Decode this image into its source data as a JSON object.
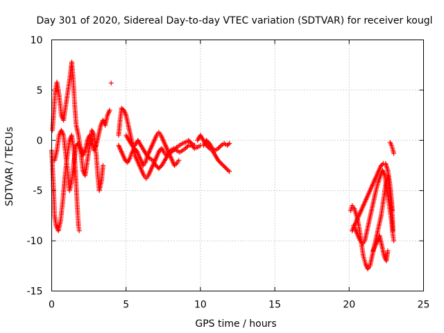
{
  "chart_data": {
    "type": "scatter",
    "title": "Day 301 of 2020, Sidereal Day-to-day VTEC variation (SDTVAR) for receiver kougl",
    "xlabel": "GPS time / hours",
    "ylabel": "SDTVAR / TECUs",
    "xlim": [
      0,
      25
    ],
    "ylim": [
      -15,
      10
    ],
    "xticks": [
      0,
      5,
      10,
      15,
      20,
      25
    ],
    "yticks": [
      -15,
      -10,
      -5,
      0,
      5,
      10
    ],
    "grid": true,
    "marker": "+",
    "color": "#ff0000",
    "series": [
      {
        "name": "SDTVAR",
        "segments": [
          [
            [
              0.0,
              -1.0
            ],
            [
              0.1,
              -4.0
            ],
            [
              0.2,
              -7.5
            ],
            [
              0.3,
              -8.5
            ],
            [
              0.45,
              -9.0
            ],
            [
              0.6,
              -8.0
            ],
            [
              0.75,
              -6.0
            ],
            [
              0.9,
              -3.5
            ],
            [
              1.05,
              -1.5
            ],
            [
              1.2,
              0.0
            ],
            [
              1.35,
              0.5
            ],
            [
              1.5,
              -1.0
            ],
            [
              1.6,
              -3.0
            ],
            [
              1.7,
              -6.0
            ],
            [
              1.8,
              -8.5
            ],
            [
              1.85,
              -9.0
            ]
          ],
          [
            [
              0.05,
              1.0
            ],
            [
              0.15,
              3.0
            ],
            [
              0.25,
              5.0
            ],
            [
              0.35,
              5.8
            ],
            [
              0.5,
              4.5
            ],
            [
              0.65,
              2.5
            ],
            [
              0.8,
              2.0
            ],
            [
              0.95,
              3.5
            ],
            [
              1.1,
              5.0
            ],
            [
              1.25,
              6.5
            ],
            [
              1.35,
              7.8
            ],
            [
              1.45,
              6.0
            ],
            [
              1.55,
              3.5
            ],
            [
              1.65,
              1.5
            ],
            [
              1.8,
              0.5
            ],
            [
              1.95,
              -1.0
            ],
            [
              2.1,
              -3.0
            ],
            [
              2.25,
              -3.5
            ],
            [
              2.4,
              -2.0
            ],
            [
              2.55,
              -0.5
            ],
            [
              2.7,
              1.0
            ],
            [
              2.85,
              0.5
            ],
            [
              3.0,
              -1.5
            ],
            [
              3.1,
              -3.5
            ],
            [
              3.2,
              -5.0
            ],
            [
              3.35,
              -4.0
            ],
            [
              3.45,
              -2.5
            ]
          ],
          [
            [
              0.2,
              -2.0
            ],
            [
              0.35,
              -1.0
            ],
            [
              0.5,
              0.5
            ],
            [
              0.65,
              1.0
            ],
            [
              0.8,
              0.5
            ],
            [
              0.95,
              -1.5
            ],
            [
              1.1,
              -3.5
            ],
            [
              1.2,
              -5.0
            ],
            [
              1.35,
              -4.0
            ],
            [
              1.5,
              -2.0
            ],
            [
              1.65,
              -0.5
            ],
            [
              1.8,
              -0.3
            ],
            [
              1.95,
              -0.8
            ],
            [
              2.1,
              -1.5
            ],
            [
              2.25,
              -1.0
            ],
            [
              2.4,
              0.0
            ],
            [
              2.55,
              0.5
            ],
            [
              2.7,
              0.0
            ],
            [
              2.85,
              -1.0
            ],
            [
              3.0,
              -0.5
            ],
            [
              3.15,
              0.5
            ],
            [
              3.3,
              1.5
            ],
            [
              3.45,
              2.0
            ],
            [
              3.6,
              1.5
            ],
            [
              3.75,
              2.5
            ],
            [
              3.9,
              3.0
            ]
          ],
          [
            [
              4.0,
              5.7
            ]
          ],
          [
            [
              4.5,
              0.5
            ],
            [
              4.6,
              2.0
            ],
            [
              4.7,
              3.2
            ],
            [
              4.85,
              3.0
            ],
            [
              5.0,
              2.5
            ],
            [
              5.15,
              1.5
            ],
            [
              5.3,
              0.5
            ],
            [
              5.45,
              -0.5
            ],
            [
              5.6,
              -1.5
            ],
            [
              5.75,
              -2.0
            ],
            [
              5.9,
              -2.5
            ],
            [
              6.05,
              -3.0
            ],
            [
              6.2,
              -3.5
            ],
            [
              6.35,
              -3.8
            ],
            [
              6.5,
              -3.5
            ],
            [
              6.65,
              -3.0
            ],
            [
              6.8,
              -2.5
            ],
            [
              6.95,
              -2.0
            ],
            [
              7.1,
              -1.5
            ],
            [
              7.25,
              -1.0
            ],
            [
              7.4,
              -0.8
            ],
            [
              7.55,
              -1.2
            ],
            [
              7.7,
              -1.5
            ],
            [
              7.85,
              -1.3
            ],
            [
              8.0,
              -1.0
            ],
            [
              8.2,
              -0.8
            ],
            [
              8.4,
              -1.0
            ],
            [
              8.6,
              -1.2
            ],
            [
              8.8,
              -1.0
            ],
            [
              9.0,
              -0.8
            ],
            [
              9.2,
              -0.5
            ],
            [
              9.4,
              -0.5
            ],
            [
              9.6,
              -0.8
            ],
            [
              9.8,
              -0.7
            ],
            [
              10.0,
              -0.5
            ]
          ],
          [
            [
              4.5,
              -0.5
            ],
            [
              4.65,
              -1.0
            ],
            [
              4.8,
              -1.5
            ],
            [
              4.95,
              -2.0
            ],
            [
              5.1,
              -2.2
            ],
            [
              5.25,
              -1.8
            ],
            [
              5.4,
              -1.2
            ],
            [
              5.55,
              -0.8
            ],
            [
              5.7,
              -1.0
            ],
            [
              5.85,
              -1.5
            ],
            [
              6.0,
              -2.0
            ],
            [
              6.15,
              -2.5
            ],
            [
              6.3,
              -2.2
            ],
            [
              6.45,
              -1.5
            ],
            [
              6.6,
              -1.0
            ],
            [
              6.75,
              -0.5
            ],
            [
              6.9,
              0.0
            ],
            [
              7.05,
              0.5
            ],
            [
              7.2,
              0.8
            ],
            [
              7.35,
              0.5
            ],
            [
              7.5,
              0.0
            ],
            [
              7.65,
              -0.5
            ],
            [
              7.8,
              -1.0
            ],
            [
              7.95,
              -1.5
            ],
            [
              8.1,
              -2.0
            ],
            [
              8.25,
              -2.5
            ],
            [
              8.4,
              -2.3
            ],
            [
              8.55,
              -2.0
            ]
          ],
          [
            [
              5.0,
              0.5
            ],
            [
              5.2,
              0.0
            ],
            [
              5.4,
              -0.5
            ],
            [
              5.6,
              -0.5
            ],
            [
              5.8,
              0.0
            ],
            [
              6.0,
              -0.5
            ],
            [
              6.2,
              -1.0
            ],
            [
              6.4,
              -1.5
            ],
            [
              6.6,
              -1.8
            ],
            [
              6.8,
              -2.0
            ],
            [
              7.0,
              -2.5
            ],
            [
              7.2,
              -2.8
            ],
            [
              7.4,
              -2.5
            ],
            [
              7.6,
              -2.0
            ],
            [
              7.8,
              -1.5
            ],
            [
              8.0,
              -1.2
            ],
            [
              8.2,
              -1.0
            ],
            [
              8.4,
              -0.7
            ],
            [
              8.6,
              -0.5
            ],
            [
              8.8,
              -0.3
            ],
            [
              9.0,
              -0.2
            ],
            [
              9.2,
              0.0
            ],
            [
              9.4,
              -0.3
            ],
            [
              9.6,
              -0.5
            ]
          ],
          [
            [
              9.8,
              0.0
            ],
            [
              10.0,
              0.5
            ],
            [
              10.2,
              0.0
            ],
            [
              10.4,
              -0.5
            ],
            [
              10.6,
              -0.8
            ],
            [
              10.8,
              -1.0
            ],
            [
              11.0,
              -1.5
            ],
            [
              11.2,
              -2.0
            ],
            [
              11.4,
              -2.3
            ],
            [
              11.6,
              -2.6
            ],
            [
              11.8,
              -2.9
            ],
            [
              11.95,
              -3.1
            ]
          ],
          [
            [
              10.2,
              -0.5
            ],
            [
              10.4,
              0.0
            ],
            [
              10.6,
              -0.3
            ],
            [
              10.8,
              -0.8
            ],
            [
              11.0,
              -1.0
            ],
            [
              11.2,
              -0.8
            ],
            [
              11.4,
              -0.5
            ],
            [
              11.6,
              -0.3
            ],
            [
              11.8,
              -0.5
            ],
            [
              11.95,
              -0.3
            ]
          ],
          [
            [
              20.1,
              -7.0
            ],
            [
              20.2,
              -6.5
            ],
            [
              20.35,
              -6.8
            ],
            [
              20.5,
              -7.5
            ],
            [
              20.65,
              -8.5
            ],
            [
              20.8,
              -10.0
            ],
            [
              20.95,
              -11.5
            ],
            [
              21.1,
              -12.3
            ],
            [
              21.25,
              -12.8
            ],
            [
              21.4,
              -12.5
            ],
            [
              21.55,
              -11.5
            ],
            [
              21.7,
              -10.5
            ],
            [
              21.85,
              -9.5
            ],
            [
              22.0,
              -8.5
            ],
            [
              22.15,
              -7.5
            ],
            [
              22.3,
              -6.0
            ],
            [
              22.45,
              -4.5
            ],
            [
              22.6,
              -3.5
            ],
            [
              22.7,
              -4.5
            ],
            [
              22.8,
              -6.0
            ],
            [
              22.9,
              -7.5
            ],
            [
              22.95,
              -9.0
            ]
          ],
          [
            [
              20.2,
              -9.0
            ],
            [
              20.35,
              -8.5
            ],
            [
              20.5,
              -8.0
            ],
            [
              20.65,
              -7.5
            ],
            [
              20.8,
              -7.0
            ],
            [
              20.95,
              -6.5
            ],
            [
              21.1,
              -6.0
            ],
            [
              21.25,
              -5.5
            ],
            [
              21.4,
              -5.0
            ],
            [
              21.55,
              -4.5
            ],
            [
              21.7,
              -4.0
            ],
            [
              21.85,
              -3.5
            ],
            [
              22.0,
              -3.0
            ],
            [
              22.15,
              -2.5
            ],
            [
              22.3,
              -2.3
            ],
            [
              22.45,
              -2.3
            ],
            [
              22.6,
              -3.0
            ],
            [
              22.75,
              -4.5
            ],
            [
              22.85,
              -6.0
            ],
            [
              22.9,
              -7.0
            ]
          ],
          [
            [
              20.3,
              -8.5
            ],
            [
              20.45,
              -9.0
            ],
            [
              20.6,
              -9.5
            ],
            [
              20.75,
              -10.0
            ],
            [
              20.9,
              -10.3
            ],
            [
              21.05,
              -10.0
            ],
            [
              21.2,
              -9.0
            ],
            [
              21.35,
              -8.0
            ],
            [
              21.5,
              -7.0
            ],
            [
              21.65,
              -6.0
            ],
            [
              21.8,
              -5.0
            ],
            [
              21.95,
              -4.2
            ],
            [
              22.1,
              -3.5
            ],
            [
              22.25,
              -3.0
            ],
            [
              22.4,
              -3.5
            ],
            [
              22.55,
              -5.0
            ],
            [
              22.7,
              -6.5
            ],
            [
              22.85,
              -8.0
            ],
            [
              22.95,
              -9.5
            ],
            [
              23.0,
              -10.0
            ]
          ],
          [
            [
              21.6,
              -11.0
            ],
            [
              21.75,
              -10.5
            ],
            [
              21.9,
              -10.0
            ],
            [
              22.05,
              -9.5
            ],
            [
              22.2,
              -10.5
            ],
            [
              22.35,
              -11.5
            ],
            [
              22.5,
              -12.0
            ],
            [
              22.6,
              -11.0
            ]
          ],
          [
            [
              22.75,
              -0.2
            ],
            [
              22.85,
              -0.5
            ],
            [
              22.95,
              -1.0
            ],
            [
              23.0,
              -1.3
            ]
          ]
        ]
      }
    ]
  }
}
